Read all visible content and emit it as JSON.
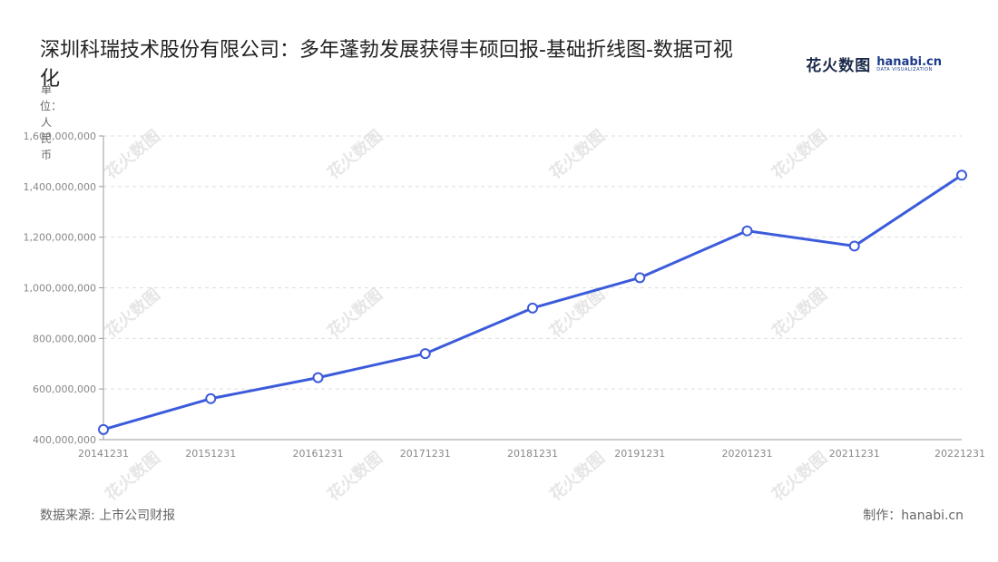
{
  "title": "深圳科瑞技术股份有限公司：多年蓬勃发展获得丰硕回报-基础折线图-数据可视化",
  "logo": {
    "cn": "花火数图",
    "en": "hanabi.cn",
    "tagline": "DATA VISUALIZATION"
  },
  "source": "数据来源: 上市公司财报",
  "credit": "制作：hanabi.cn",
  "watermark": "花火数图",
  "colors": {
    "line": "#3b5bdb",
    "grid": "#dddddd",
    "axis": "#999999",
    "tick": "#888888"
  },
  "chart_data": {
    "type": "line",
    "title": "深圳科瑞技术股份有限公司：多年蓬勃发展获得丰硕回报-基础折线图-数据可视化",
    "ylabel": "单位：人民币",
    "xlabel": "",
    "categories": [
      "20141231",
      "20151231",
      "20161231",
      "20171231",
      "20181231",
      "20191231",
      "20201231",
      "20211231",
      "20221231"
    ],
    "series": [
      {
        "values": [
          440000000,
          562000000,
          645000000,
          740000000,
          920000000,
          1040000000,
          1225000000,
          1165000000,
          1445000000
        ]
      }
    ],
    "ylim": [
      400000000,
      1600000000
    ],
    "yticks": [
      400000000,
      600000000,
      800000000,
      1000000000,
      1200000000,
      1400000000,
      1600000000
    ],
    "ytick_labels": [
      "400,000,000",
      "600,000,000",
      "800,000,000",
      "1,000,000,000",
      "1,200,000,000",
      "1,400,000,000",
      "1,600,000,000"
    ],
    "grid": true,
    "legend": "none"
  }
}
